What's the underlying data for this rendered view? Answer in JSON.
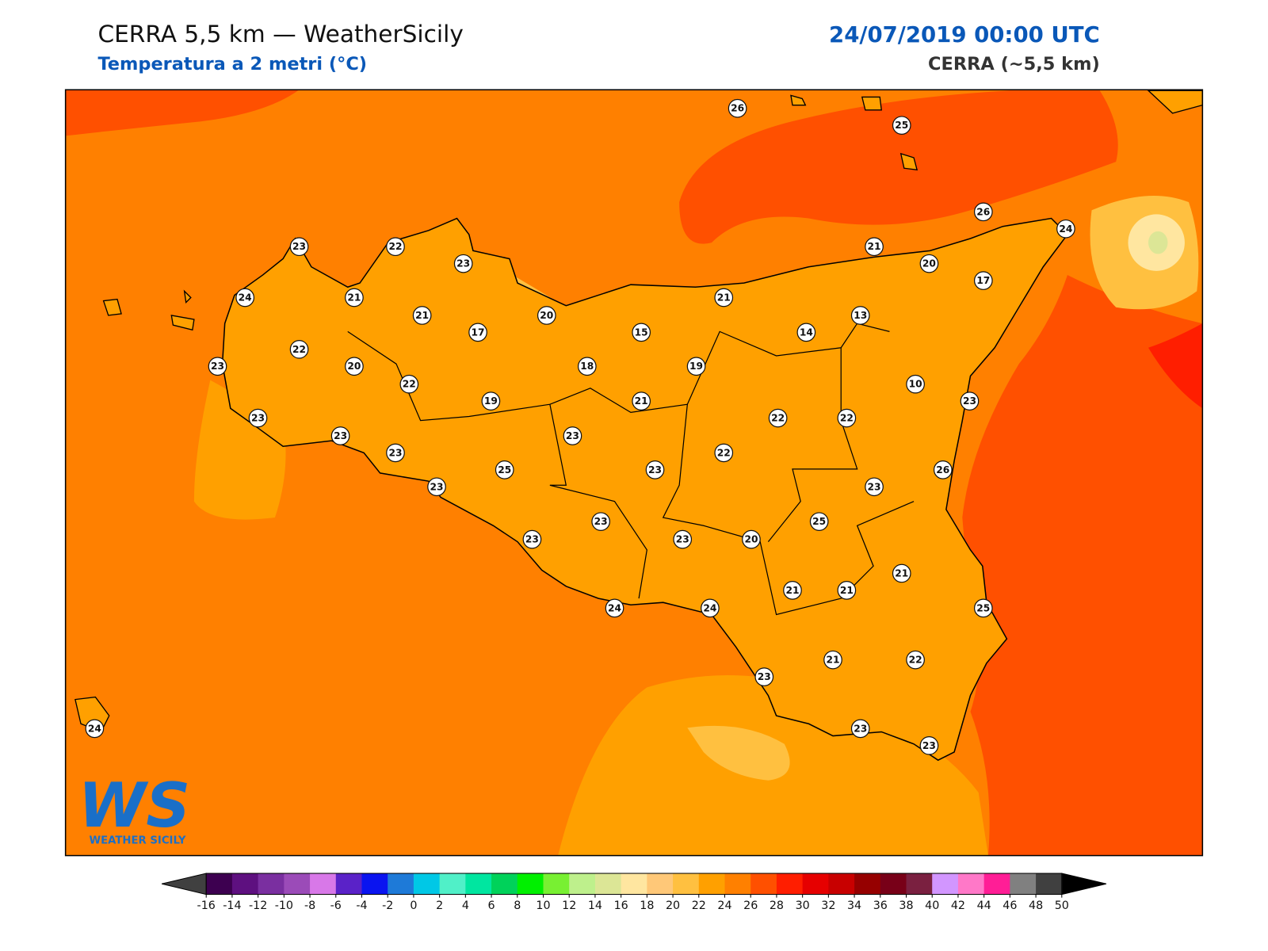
{
  "header": {
    "title": "CERRA 5,5 km — WeatherSicily",
    "subtitle": "Temperatura a 2 metri (°C)",
    "date": "24/07/2019 00:00 UTC",
    "model": "CERRA (~5,5 km)"
  },
  "logo": {
    "mark": "WS",
    "name": "WEATHER SICILY"
  },
  "stations": [
    26,
    25,
    23,
    22,
    23,
    24,
    21,
    21,
    17,
    20,
    15,
    21,
    21,
    20,
    26,
    24,
    17,
    13,
    14,
    22,
    20,
    23,
    18,
    19,
    10,
    22,
    19,
    21,
    23,
    23,
    22,
    22,
    23,
    23,
    23,
    22,
    25,
    23,
    26,
    23,
    23,
    23,
    25,
    23,
    23,
    20,
    21,
    21,
    21,
    24,
    24,
    25,
    23,
    21,
    22,
    24,
    23,
    23
  ],
  "colorbar": {
    "ticks": [
      -16,
      -14,
      -12,
      -10,
      -8,
      -6,
      -4,
      -2,
      0,
      2,
      4,
      6,
      8,
      10,
      12,
      14,
      16,
      18,
      20,
      22,
      24,
      26,
      28,
      30,
      32,
      34,
      36,
      38,
      40,
      42,
      44,
      46,
      48,
      50
    ],
    "colors": [
      "#3d0050",
      "#5e1080",
      "#7a2fa0",
      "#9b4bb8",
      "#d878e8",
      "#5a22c8",
      "#0a14f0",
      "#1e7ad8",
      "#00c8e6",
      "#50f0c8",
      "#00e6a0",
      "#00d25a",
      "#00f000",
      "#78f032",
      "#bef08c",
      "#dce696",
      "#ffe6a0",
      "#ffc878",
      "#ffc040",
      "#ffa000",
      "#ff8000",
      "#ff5000",
      "#ff1e00",
      "#e60000",
      "#c80000",
      "#960000",
      "#780018",
      "#7a2040",
      "#d296ff",
      "#ff78c8",
      "#ff1e96",
      "#808080",
      "#404040"
    ],
    "under_color": "#404040",
    "over_color": "#000000"
  }
}
